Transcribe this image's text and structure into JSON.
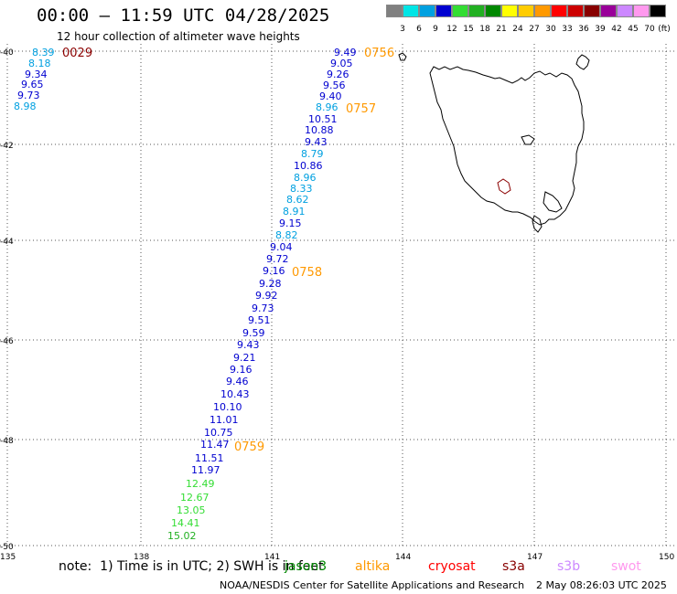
{
  "header": {
    "title": "00:00 – 11:59 UTC 04/28/2025",
    "subtitle": "12 hour collection of altimeter wave heights"
  },
  "legend": {
    "unit": "(ft)",
    "bins": [
      {
        "label": "3",
        "color": "#808080"
      },
      {
        "label": "6",
        "color": "#00e5e5"
      },
      {
        "label": "9",
        "color": "#00a0e0"
      },
      {
        "label": "12",
        "color": "#0000d0"
      },
      {
        "label": "15",
        "color": "#33dd33"
      },
      {
        "label": "18",
        "color": "#22b022"
      },
      {
        "label": "21",
        "color": "#008800"
      },
      {
        "label": "24",
        "color": "#ffff00"
      },
      {
        "label": "27",
        "color": "#ffcc00"
      },
      {
        "label": "30",
        "color": "#ff9900"
      },
      {
        "label": "33",
        "color": "#ff0000"
      },
      {
        "label": "36",
        "color": "#cc0000"
      },
      {
        "label": "39",
        "color": "#880000"
      },
      {
        "label": "42",
        "color": "#990099"
      },
      {
        "label": "45",
        "color": "#cc88ff"
      },
      {
        "label": "70",
        "color": "#ff99ee"
      },
      {
        "label": "",
        "color": "#000000"
      }
    ]
  },
  "axes": {
    "lat_labels": [
      "-40",
      "-42",
      "-44",
      "-46",
      "-48",
      "-50"
    ],
    "lon_labels": [
      "135",
      "138",
      "141",
      "144",
      "147",
      "150"
    ]
  },
  "track_west": {
    "time_label": "0029",
    "time_color": "#8b0000",
    "values": [
      {
        "v": "8.39",
        "c": "#00a0e0"
      },
      {
        "v": "8.18",
        "c": "#00a0e0"
      },
      {
        "v": "9.34",
        "c": "#0000d0"
      },
      {
        "v": "9.65",
        "c": "#0000d0"
      },
      {
        "v": "9.73",
        "c": "#0000d0"
      },
      {
        "v": "8.98",
        "c": "#00a0e0"
      }
    ]
  },
  "track_main": {
    "time_labels": [
      {
        "t": "0756",
        "c": "#ff9900"
      },
      {
        "t": "0757",
        "c": "#ff9900"
      },
      {
        "t": "0758",
        "c": "#ff9900"
      },
      {
        "t": "0759",
        "c": "#ff9900"
      }
    ],
    "values": [
      {
        "v": "9.49",
        "c": "#0000d0"
      },
      {
        "v": "9.05",
        "c": "#0000d0"
      },
      {
        "v": "9.26",
        "c": "#0000d0"
      },
      {
        "v": "9.56",
        "c": "#0000d0"
      },
      {
        "v": "9.40",
        "c": "#0000d0"
      },
      {
        "v": "8.96",
        "c": "#00a0e0"
      },
      {
        "v": "10.51",
        "c": "#0000d0"
      },
      {
        "v": "10.88",
        "c": "#0000d0"
      },
      {
        "v": "9.43",
        "c": "#0000d0"
      },
      {
        "v": "8.79",
        "c": "#00a0e0"
      },
      {
        "v": "10.86",
        "c": "#0000d0"
      },
      {
        "v": "8.96",
        "c": "#00a0e0"
      },
      {
        "v": "8.33",
        "c": "#00a0e0"
      },
      {
        "v": "8.62",
        "c": "#00a0e0"
      },
      {
        "v": "8.91",
        "c": "#00a0e0"
      },
      {
        "v": "9.15",
        "c": "#0000d0"
      },
      {
        "v": "8.82",
        "c": "#00a0e0"
      },
      {
        "v": "9.04",
        "c": "#0000d0"
      },
      {
        "v": "9.72",
        "c": "#0000d0"
      },
      {
        "v": "9.16",
        "c": "#0000d0"
      },
      {
        "v": "9.28",
        "c": "#0000d0"
      },
      {
        "v": "9.92",
        "c": "#0000d0"
      },
      {
        "v": "9.73",
        "c": "#0000d0"
      },
      {
        "v": "9.51",
        "c": "#0000d0"
      },
      {
        "v": "9.59",
        "c": "#0000d0"
      },
      {
        "v": "9.43",
        "c": "#0000d0"
      },
      {
        "v": "9.21",
        "c": "#0000d0"
      },
      {
        "v": "9.16",
        "c": "#0000d0"
      },
      {
        "v": "9.46",
        "c": "#0000d0"
      },
      {
        "v": "10.43",
        "c": "#0000d0"
      },
      {
        "v": "10.10",
        "c": "#0000d0"
      },
      {
        "v": "11.01",
        "c": "#0000d0"
      },
      {
        "v": "10.75",
        "c": "#0000d0"
      },
      {
        "v": "11.47",
        "c": "#0000d0"
      },
      {
        "v": "11.51",
        "c": "#0000d0"
      },
      {
        "v": "11.97",
        "c": "#0000d0"
      },
      {
        "v": "12.49",
        "c": "#33dd33"
      },
      {
        "v": "12.67",
        "c": "#33dd33"
      },
      {
        "v": "13.05",
        "c": "#33dd33"
      },
      {
        "v": "14.41",
        "c": "#33dd33"
      },
      {
        "v": "15.02",
        "c": "#22b022"
      }
    ]
  },
  "footer": {
    "note": "note:  1) Time is in UTC; 2) SWH is in feet",
    "satellites": [
      {
        "name": "jason3",
        "color": "#008800"
      },
      {
        "name": "altika",
        "color": "#ff9900"
      },
      {
        "name": "cryosat",
        "color": "#ff0000"
      },
      {
        "name": "s3a",
        "color": "#880000"
      },
      {
        "name": "s3b",
        "color": "#cc88ff"
      },
      {
        "name": "swot",
        "color": "#ff99ee"
      }
    ],
    "credit": "NOAA/NESDIS Center for Satellite Applications and Research",
    "timestamp": "2 May 08:26:03 UTC 2025"
  }
}
